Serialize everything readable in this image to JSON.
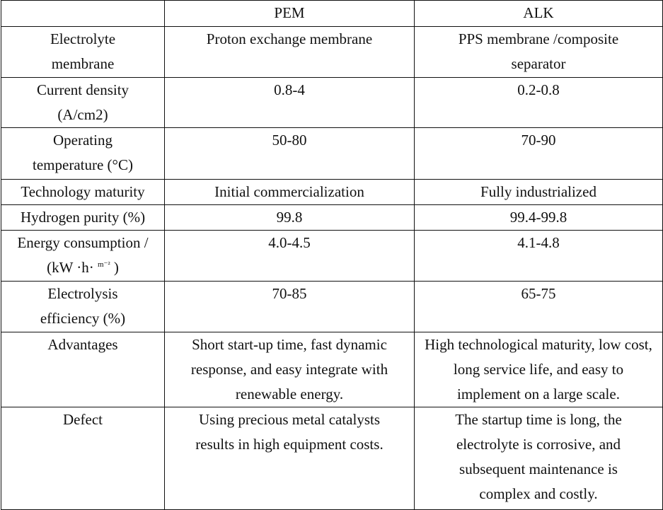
{
  "header": [
    "",
    "PEM",
    "ALK"
  ],
  "rows": [
    {
      "label": "Electrolyte membrane",
      "pem": "Proton exchange membrane",
      "alk": "PPS membrane /composite separator"
    },
    {
      "label": "Current density (A/cm2)",
      "pem": "0.8-4",
      "alk": "0.2-0.8"
    },
    {
      "label": "Operating temperature (°C)",
      "pem": "50-80",
      "alk": "70-90"
    },
    {
      "label": "Technology maturity",
      "pem": "Initial commercialization",
      "alk": "Fully industrialized"
    },
    {
      "label": "Hydrogen purity (%)",
      "pem": "99.8",
      "alk": "99.4-99.8"
    },
    {
      "label": "Energy consumption / (kW ·h·",
      "label_sup": "m⁻²",
      "label_end": ")",
      "pem": "4.0-4.5",
      "alk": "4.1-4.8"
    },
    {
      "label": "Electrolysis efficiency (%)",
      "pem": "70-85",
      "alk": "65-75"
    },
    {
      "label": "Advantages",
      "pem": "Short start-up time, fast dynamic response, and easy integrate with renewable energy.",
      "alk": "High technological maturity, low cost, long service life, and easy to implement on a large scale."
    },
    {
      "label": "Defect",
      "pem": "Using precious metal catalysts results in high equipment costs.",
      "alk": "The startup time is long, the electrolyte is corrosive, and subsequent maintenance is complex and costly."
    }
  ]
}
